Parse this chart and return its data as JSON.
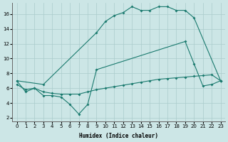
{
  "xlabel": "Humidex (Indice chaleur)",
  "line_color": "#1a7a6e",
  "bg_color": "#cce6e6",
  "grid_color": "#aacccc",
  "ylim": [
    1.5,
    17.5
  ],
  "xlim": [
    -0.5,
    23.5
  ],
  "yticks": [
    2,
    4,
    6,
    8,
    10,
    12,
    14,
    16
  ],
  "xticks": [
    0,
    1,
    2,
    3,
    4,
    5,
    6,
    7,
    8,
    9,
    10,
    11,
    12,
    13,
    14,
    15,
    16,
    17,
    18,
    19,
    20,
    21,
    22,
    23
  ],
  "top_x": [
    0,
    3,
    9,
    10,
    11,
    12,
    13,
    14,
    15,
    16,
    17,
    18,
    19,
    20,
    23
  ],
  "top_y": [
    7,
    6.5,
    13.5,
    15,
    15.8,
    16.2,
    17,
    16.5,
    16.5,
    17,
    17,
    16.5,
    16.5,
    15.5,
    7
  ],
  "mid_x": [
    0,
    1,
    2,
    3,
    4,
    5,
    6,
    7,
    8,
    9,
    10,
    11,
    12,
    13,
    14,
    15,
    16,
    17,
    18,
    19,
    20,
    21,
    22,
    23
  ],
  "mid_y": [
    6.5,
    5.8,
    6.0,
    5.5,
    5.3,
    5.2,
    5.2,
    5.2,
    5.5,
    5.8,
    6.0,
    6.2,
    6.4,
    6.6,
    6.8,
    7.0,
    7.2,
    7.3,
    7.4,
    7.5,
    7.6,
    7.7,
    7.8,
    7.0
  ],
  "bot_x": [
    0,
    1,
    2,
    3,
    4,
    5,
    6,
    7,
    8,
    9,
    19,
    20,
    21,
    22,
    23
  ],
  "bot_y": [
    7,
    5.5,
    6.0,
    5.0,
    5.0,
    4.8,
    3.8,
    2.5,
    3.8,
    8.5,
    12.3,
    9.3,
    6.3,
    6.5,
    7.0
  ]
}
